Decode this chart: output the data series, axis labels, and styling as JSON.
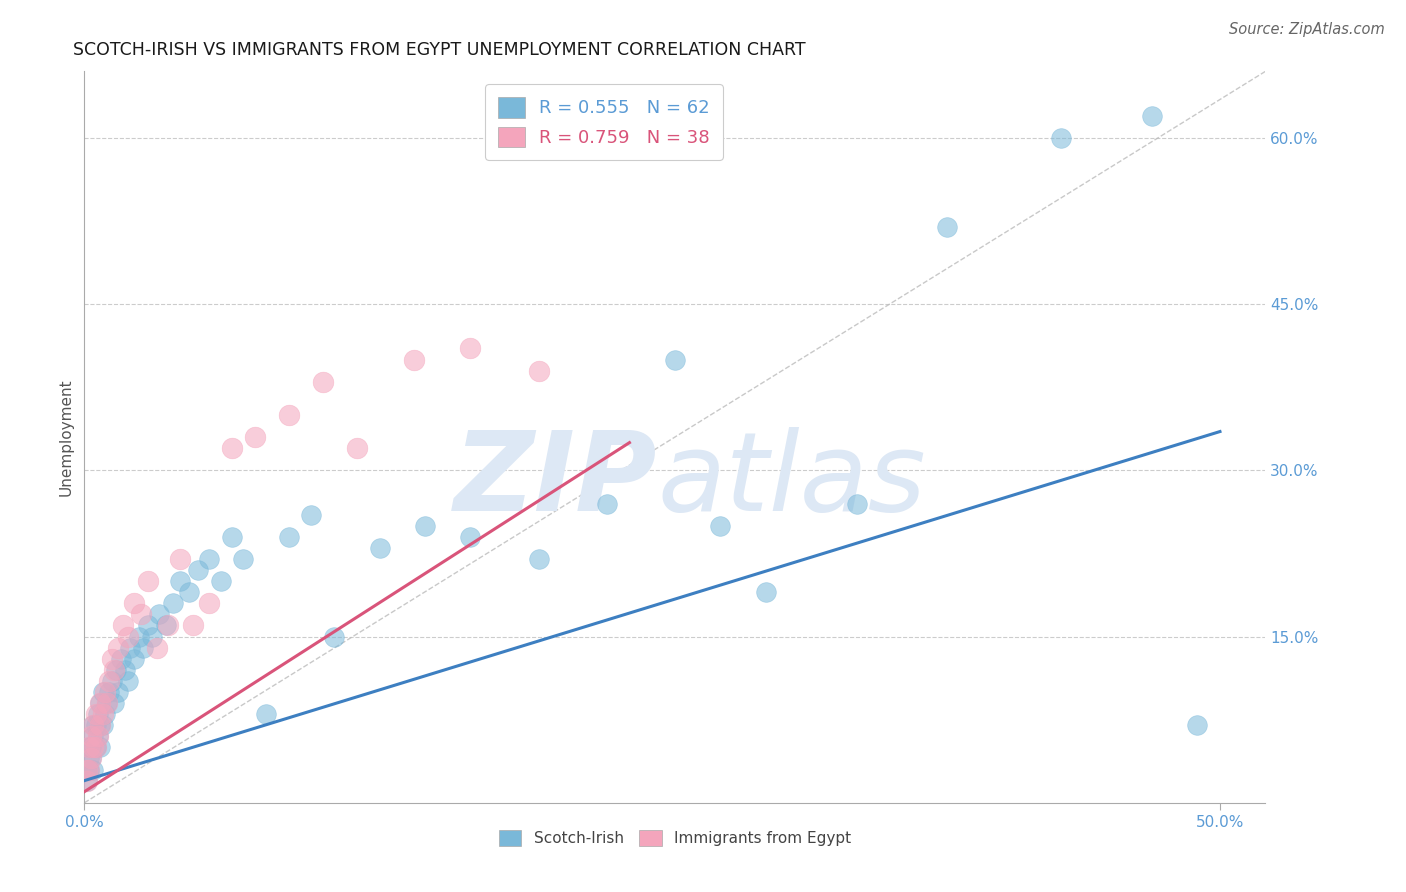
{
  "title": "SCOTCH-IRISH VS IMMIGRANTS FROM EGYPT UNEMPLOYMENT CORRELATION CHART",
  "source": "Source: ZipAtlas.com",
  "ylabel": "Unemployment",
  "xlim": [
    0.0,
    0.52
  ],
  "ylim": [
    0.0,
    0.66
  ],
  "ytick_positions": [
    0.0,
    0.15,
    0.3,
    0.45,
    0.6
  ],
  "ytick_labels": [
    "",
    "15.0%",
    "30.0%",
    "45.0%",
    "60.0%"
  ],
  "blue_R": 0.555,
  "blue_N": 62,
  "pink_R": 0.759,
  "pink_N": 38,
  "blue_color": "#7ab8d9",
  "pink_color": "#f4a5bc",
  "trend_blue": "#3d7fc1",
  "trend_pink": "#d9547a",
  "axis_color": "#5b9bd5",
  "watermark_color": "#dde8f5",
  "blue_scatter_x": [
    0.001,
    0.001,
    0.002,
    0.002,
    0.002,
    0.003,
    0.003,
    0.004,
    0.004,
    0.004,
    0.005,
    0.005,
    0.006,
    0.006,
    0.007,
    0.007,
    0.007,
    0.008,
    0.008,
    0.009,
    0.01,
    0.011,
    0.012,
    0.013,
    0.014,
    0.015,
    0.016,
    0.018,
    0.019,
    0.02,
    0.022,
    0.024,
    0.026,
    0.028,
    0.03,
    0.033,
    0.036,
    0.039,
    0.042,
    0.046,
    0.05,
    0.055,
    0.06,
    0.065,
    0.07,
    0.08,
    0.09,
    0.1,
    0.11,
    0.13,
    0.15,
    0.17,
    0.2,
    0.23,
    0.26,
    0.28,
    0.3,
    0.34,
    0.38,
    0.43,
    0.47,
    0.49
  ],
  "blue_scatter_y": [
    0.02,
    0.03,
    0.03,
    0.04,
    0.05,
    0.04,
    0.05,
    0.03,
    0.06,
    0.07,
    0.05,
    0.07,
    0.06,
    0.08,
    0.05,
    0.07,
    0.09,
    0.07,
    0.1,
    0.08,
    0.09,
    0.1,
    0.11,
    0.09,
    0.12,
    0.1,
    0.13,
    0.12,
    0.11,
    0.14,
    0.13,
    0.15,
    0.14,
    0.16,
    0.15,
    0.17,
    0.16,
    0.18,
    0.2,
    0.19,
    0.21,
    0.22,
    0.2,
    0.24,
    0.22,
    0.08,
    0.24,
    0.26,
    0.15,
    0.23,
    0.25,
    0.24,
    0.22,
    0.27,
    0.4,
    0.25,
    0.19,
    0.27,
    0.52,
    0.6,
    0.62,
    0.07
  ],
  "pink_scatter_x": [
    0.001,
    0.001,
    0.002,
    0.002,
    0.003,
    0.003,
    0.004,
    0.004,
    0.005,
    0.005,
    0.006,
    0.007,
    0.007,
    0.008,
    0.009,
    0.01,
    0.011,
    0.012,
    0.013,
    0.015,
    0.017,
    0.019,
    0.022,
    0.025,
    0.028,
    0.032,
    0.037,
    0.042,
    0.048,
    0.055,
    0.065,
    0.075,
    0.09,
    0.105,
    0.12,
    0.145,
    0.17,
    0.2
  ],
  "pink_scatter_y": [
    0.02,
    0.03,
    0.03,
    0.05,
    0.04,
    0.06,
    0.05,
    0.07,
    0.05,
    0.08,
    0.06,
    0.07,
    0.09,
    0.08,
    0.1,
    0.09,
    0.11,
    0.13,
    0.12,
    0.14,
    0.16,
    0.15,
    0.18,
    0.17,
    0.2,
    0.14,
    0.16,
    0.22,
    0.16,
    0.18,
    0.32,
    0.33,
    0.35,
    0.38,
    0.32,
    0.4,
    0.41,
    0.39
  ],
  "blue_trend_x": [
    0.0,
    0.5
  ],
  "blue_trend_y": [
    0.02,
    0.335
  ],
  "pink_trend_x": [
    0.0,
    0.24
  ],
  "pink_trend_y": [
    0.01,
    0.325
  ],
  "ref_line_x": [
    0.0,
    0.52
  ],
  "ref_line_y": [
    0.0,
    0.66
  ]
}
